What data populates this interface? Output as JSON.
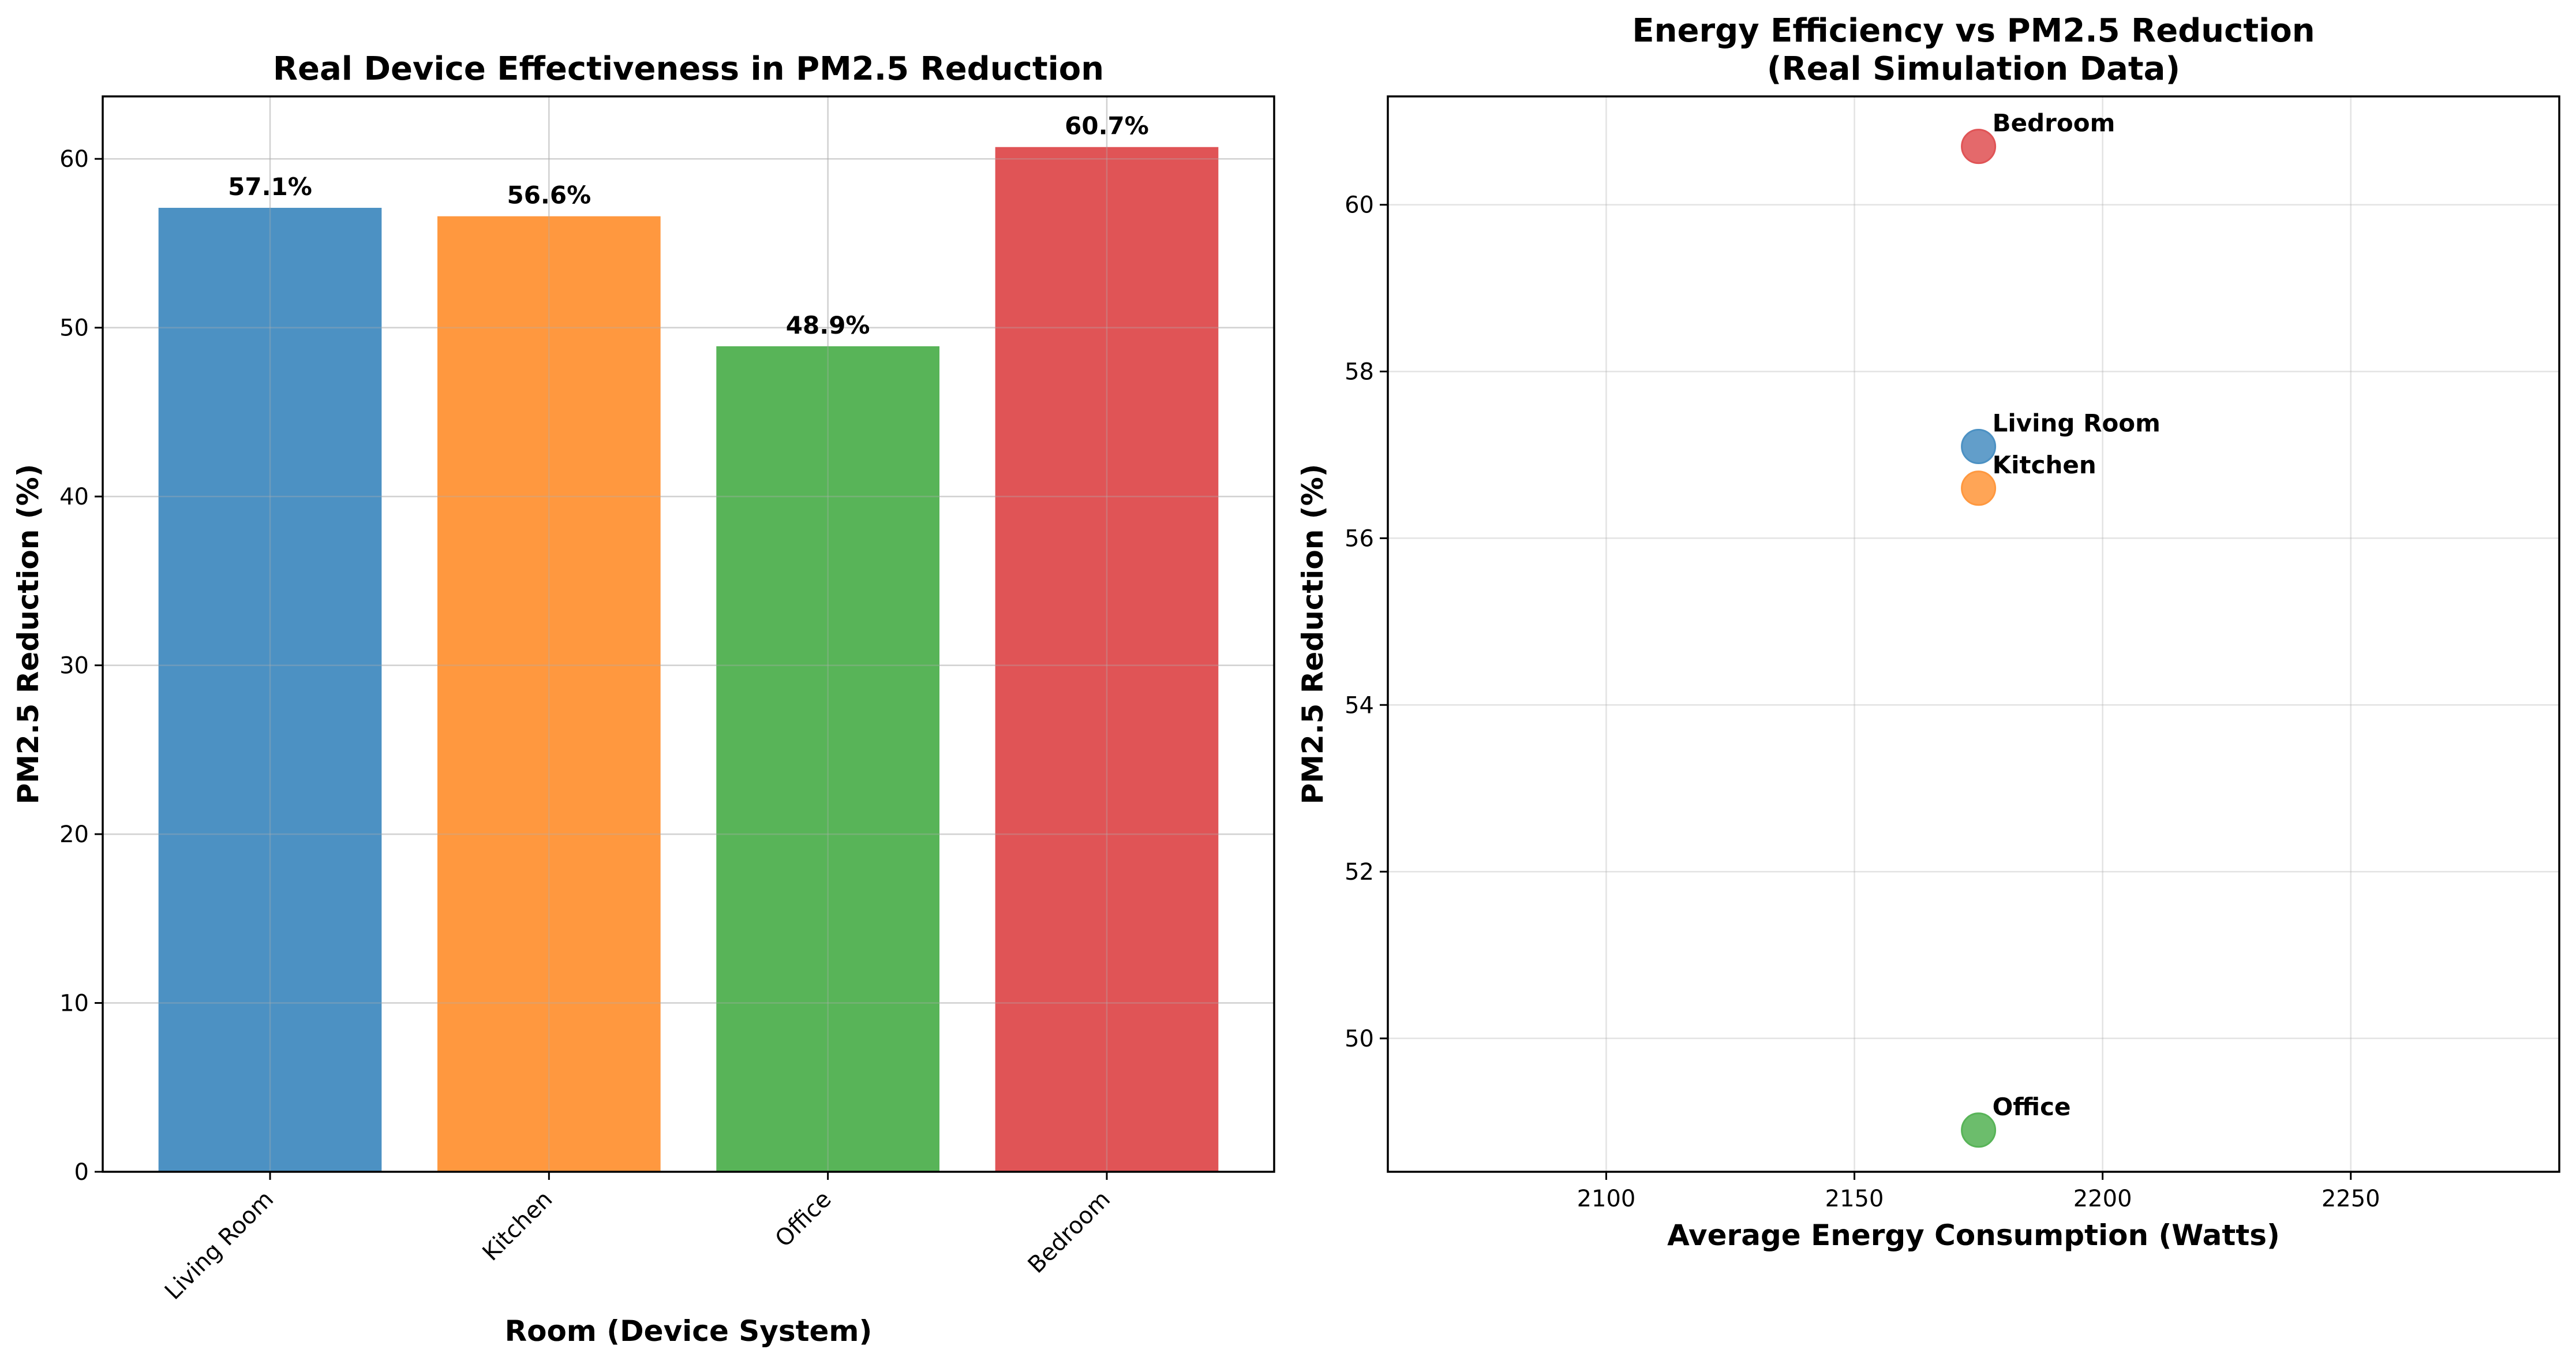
{
  "chart_data": [
    {
      "type": "bar",
      "title": "Real Device Effectiveness in PM2.5 Reduction",
      "xlabel": "Room (Device System)",
      "ylabel": "PM2.5 Reduction (%)",
      "categories": [
        "Living Room",
        "Kitchen",
        "Office",
        "Bedroom"
      ],
      "values": [
        57.1,
        56.6,
        48.9,
        60.7
      ],
      "data_labels": [
        "57.1%",
        "56.6%",
        "48.9%",
        "60.7%"
      ],
      "colors": [
        "#4c91c3",
        "#ff983f",
        "#58b458",
        "#e05456"
      ],
      "ylim": [
        0,
        63.7
      ],
      "yticks": [
        0,
        10,
        20,
        30,
        40,
        50,
        60
      ],
      "grid": true
    },
    {
      "type": "scatter",
      "title": "Energy Efficiency vs PM2.5 Reduction\n(Real Simulation Data)",
      "title_lines": [
        "Energy Efficiency vs PM2.5 Reduction",
        "(Real Simulation Data)"
      ],
      "xlabel": "Average Energy Consumption (Watts)",
      "ylabel": "PM2.5 Reduction (%)",
      "points": [
        {
          "label": "Living Room",
          "x": 2175,
          "y": 57.1,
          "color": "#4c91c3"
        },
        {
          "label": "Kitchen",
          "x": 2175,
          "y": 56.6,
          "color": "#ff983f"
        },
        {
          "label": "Office",
          "x": 2175,
          "y": 48.9,
          "color": "#58b458"
        },
        {
          "label": "Bedroom",
          "x": 2175,
          "y": 60.7,
          "color": "#e05456"
        }
      ],
      "xlim": [
        2056,
        2292
      ],
      "ylim": [
        48.4,
        61.3
      ],
      "xticks": [
        2100,
        2150,
        2200,
        2250
      ],
      "yticks": [
        50,
        52,
        54,
        56,
        58,
        60
      ],
      "grid": true
    }
  ]
}
